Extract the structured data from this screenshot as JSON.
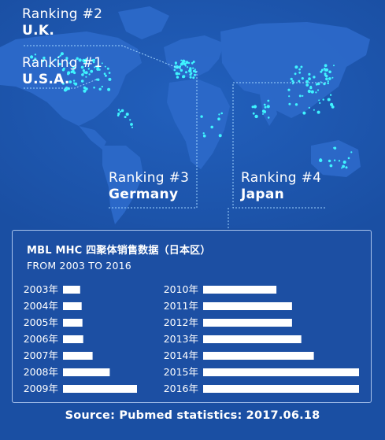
{
  "colors": {
    "background": "#1a4fa3",
    "map_land": "#2c69c9",
    "dots": "#3ff4ff",
    "bar": "#ffffff",
    "panel_border": "#a9c3ec"
  },
  "rankings": [
    {
      "title": "Ranking #2",
      "country": "U.K."
    },
    {
      "title": "Ranking #1",
      "country": "U.S.A."
    },
    {
      "title": "Ranking #3",
      "country": "Germany"
    },
    {
      "title": "Ranking #4",
      "country": "Japan"
    }
  ],
  "chart_data": {
    "type": "bar",
    "orientation": "horizontal",
    "title": "MBL MHC 四聚体销售数据（日本区）",
    "subtitle": "FROM 2003 TO 2016",
    "categories": [
      "2003年",
      "2004年",
      "2005年",
      "2006年",
      "2007年",
      "2008年",
      "2009年",
      "2010年",
      "2011年",
      "2012年",
      "2013年",
      "2014年",
      "2015年",
      "2016年"
    ],
    "values": [
      22,
      24,
      25,
      26,
      38,
      60,
      95,
      94,
      114,
      114,
      126,
      142,
      200,
      200
    ],
    "grid": false,
    "axes_visible": false
  },
  "source": "Source: Pubmed statistics: 2017.06.18"
}
